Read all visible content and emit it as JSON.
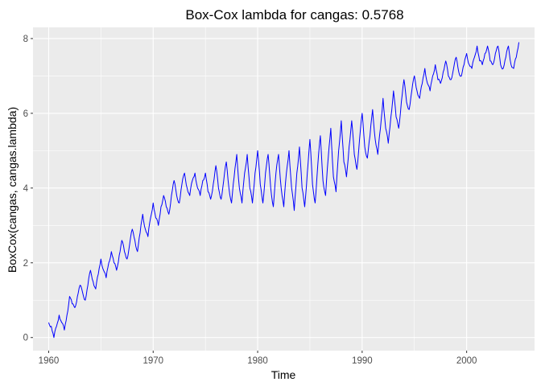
{
  "chart_data": {
    "type": "line",
    "title": "Box-Cox lambda for cangas:  0.5768",
    "xlabel": "Time",
    "ylabel": "BoxCox(cangas, cangas.lambda)",
    "xlim": [
      1958.5,
      2006.5
    ],
    "ylim": [
      -0.35,
      8.3
    ],
    "x_ticks": [
      1960,
      1970,
      1980,
      1990,
      2000
    ],
    "y_ticks": [
      0,
      2,
      4,
      6,
      8
    ],
    "grid": true,
    "legend": "none",
    "line_color": "#0000ff",
    "panel_color": "#ebebeb",
    "frequency": "monthly",
    "series": [
      {
        "x": [
          1960.0,
          1960.25,
          1960.5,
          1960.75,
          1961.0,
          1961.25,
          1961.5,
          1961.75,
          1962.0,
          1962.25,
          1962.5,
          1962.75,
          1963.0,
          1963.25,
          1963.5,
          1963.75,
          1964.0,
          1964.25,
          1964.5,
          1964.75,
          1965.0,
          1965.25,
          1965.5,
          1965.75,
          1966.0,
          1966.25,
          1966.5,
          1966.75,
          1967.0,
          1967.25,
          1967.5,
          1967.75,
          1968.0,
          1968.25,
          1968.5,
          1968.75,
          1969.0,
          1969.25,
          1969.5,
          1969.75,
          1970.0,
          1970.25,
          1970.5,
          1970.75,
          1971.0,
          1971.25,
          1971.5,
          1971.75,
          1972.0,
          1972.25,
          1972.5,
          1972.75,
          1973.0,
          1973.25,
          1973.5,
          1973.75,
          1974.0,
          1974.25,
          1974.5,
          1974.75,
          1975.0,
          1975.25,
          1975.5,
          1975.75,
          1976.0,
          1976.25,
          1976.5,
          1976.75,
          1977.0,
          1977.25,
          1977.5,
          1977.75,
          1978.0,
          1978.25,
          1978.5,
          1978.75,
          1979.0,
          1979.25,
          1979.5,
          1979.75,
          1980.0,
          1980.25,
          1980.5,
          1980.75,
          1981.0,
          1981.25,
          1981.5,
          1981.75,
          1982.0,
          1982.25,
          1982.5,
          1982.75,
          1983.0,
          1983.25,
          1983.5,
          1983.75,
          1984.0,
          1984.25,
          1984.5,
          1984.75,
          1985.0,
          1985.25,
          1985.5,
          1985.75,
          1986.0,
          1986.25,
          1986.5,
          1986.75,
          1987.0,
          1987.25,
          1987.5,
          1987.75,
          1988.0,
          1988.25,
          1988.5,
          1988.75,
          1989.0,
          1989.25,
          1989.5,
          1989.75,
          1990.0,
          1990.25,
          1990.5,
          1990.75,
          1991.0,
          1991.25,
          1991.5,
          1991.75,
          1992.0,
          1992.25,
          1992.5,
          1992.75,
          1993.0,
          1993.25,
          1993.5,
          1993.75,
          1994.0,
          1994.25,
          1994.5,
          1994.75,
          1995.0,
          1995.25,
          1995.5,
          1995.75,
          1996.0,
          1996.25,
          1996.5,
          1996.75,
          1997.0,
          1997.25,
          1997.5,
          1997.75,
          1998.0,
          1998.25,
          1998.5,
          1998.75,
          1999.0,
          1999.25,
          1999.5,
          1999.75,
          2000.0,
          2000.25,
          2000.5,
          2000.75,
          2001.0,
          2001.25,
          2001.5,
          2001.75,
          2002.0,
          2002.25,
          2002.5,
          2002.75,
          2003.0,
          2003.25,
          2003.5,
          2003.75,
          2004.0,
          2004.25,
          2004.5,
          2004.75,
          2005.0
        ],
        "values": [
          0.4,
          0.3,
          0.0,
          0.3,
          0.6,
          0.4,
          0.2,
          0.6,
          1.1,
          0.9,
          0.8,
          1.1,
          1.4,
          1.2,
          1.0,
          1.4,
          1.8,
          1.5,
          1.3,
          1.7,
          2.1,
          1.8,
          1.6,
          2.0,
          2.3,
          2.0,
          1.8,
          2.2,
          2.6,
          2.3,
          2.1,
          2.5,
          2.9,
          2.6,
          2.3,
          2.8,
          3.3,
          2.9,
          2.7,
          3.2,
          3.6,
          3.2,
          3.0,
          3.5,
          3.8,
          3.5,
          3.3,
          3.8,
          4.2,
          3.8,
          3.6,
          4.1,
          4.4,
          4.0,
          3.8,
          4.2,
          4.4,
          4.0,
          3.8,
          4.2,
          4.4,
          3.9,
          3.7,
          4.1,
          4.6,
          4.0,
          3.7,
          4.2,
          4.7,
          4.0,
          3.6,
          4.3,
          4.9,
          4.0,
          3.6,
          4.4,
          4.9,
          4.0,
          3.6,
          4.4,
          5.0,
          4.1,
          3.6,
          4.4,
          4.9,
          4.0,
          3.5,
          4.4,
          4.9,
          4.0,
          3.5,
          4.4,
          5.0,
          4.0,
          3.4,
          4.4,
          5.1,
          4.0,
          3.5,
          4.4,
          5.3,
          4.1,
          3.6,
          4.6,
          5.4,
          4.2,
          3.8,
          4.8,
          5.6,
          4.3,
          3.9,
          5.0,
          5.8,
          4.7,
          4.3,
          5.1,
          5.8,
          4.9,
          4.5,
          5.3,
          6.0,
          5.1,
          4.8,
          5.4,
          6.1,
          5.3,
          4.9,
          5.6,
          6.4,
          5.6,
          5.2,
          5.9,
          6.6,
          5.9,
          5.6,
          6.3,
          6.9,
          6.3,
          6.1,
          6.6,
          7.0,
          6.6,
          6.4,
          6.8,
          7.2,
          6.8,
          6.6,
          7.0,
          7.3,
          6.9,
          6.8,
          7.1,
          7.4,
          7.0,
          6.9,
          7.2,
          7.5,
          7.1,
          7.0,
          7.3,
          7.6,
          7.3,
          7.2,
          7.5,
          7.8,
          7.4,
          7.3,
          7.6,
          7.8,
          7.4,
          7.3,
          7.6,
          7.8,
          7.3,
          7.2,
          7.5,
          7.8,
          7.3,
          7.2,
          7.5,
          7.9
        ]
      }
    ]
  }
}
